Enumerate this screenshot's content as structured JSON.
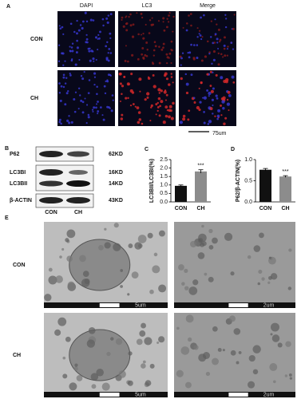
{
  "panel_labels": [
    "A",
    "B",
    "C",
    "D",
    "E"
  ],
  "panel_a": {
    "columns": [
      "DAPI",
      "LC3",
      "Merge"
    ],
    "rows": [
      "CON",
      "CH"
    ],
    "scale_bar": "75um"
  },
  "panel_b": {
    "left_labels": [
      "P62",
      "LC3BI",
      "LC3BII",
      "β-ACTIN"
    ],
    "right_labels": [
      "62KD",
      "16KD",
      "14KD",
      "43KD"
    ],
    "lanes": [
      "CON",
      "CH"
    ]
  },
  "chart_data": [
    {
      "type": "bar",
      "y_label": "LC3BII/LC3BI(%)",
      "categories": [
        "CON",
        "CH"
      ],
      "values": [
        0.95,
        1.8
      ],
      "errors": [
        0.05,
        0.1
      ],
      "colors": [
        "#111111",
        "#8c8c8c"
      ],
      "ylim": [
        0,
        2.5
      ],
      "yticks": [
        {
          "value": 0,
          "label": "0.0"
        },
        0.5,
        {
          "value": 1,
          "label": "1.0"
        },
        1.5,
        {
          "value": 2,
          "label": "2.0"
        },
        2.5
      ],
      "annotation": "***"
    },
    {
      "type": "bar",
      "y_label": "P62/β-ACTIN(%)",
      "categories": [
        "CON",
        "CH"
      ],
      "values": [
        0.76,
        0.6
      ],
      "errors": [
        0.03,
        0.02
      ],
      "colors": [
        "#111111",
        "#8c8c8c"
      ],
      "ylim": [
        0,
        1
      ],
      "yticks": [
        {
          "value": 0,
          "label": "0.0"
        },
        0.5,
        {
          "value": 1,
          "label": "1.0"
        }
      ],
      "annotation": "***"
    }
  ],
  "panel_e": {
    "rows": [
      "CON",
      "CH"
    ],
    "scale_labels": [
      [
        "5um",
        "2um"
      ],
      [
        "5um",
        "2um"
      ]
    ]
  }
}
